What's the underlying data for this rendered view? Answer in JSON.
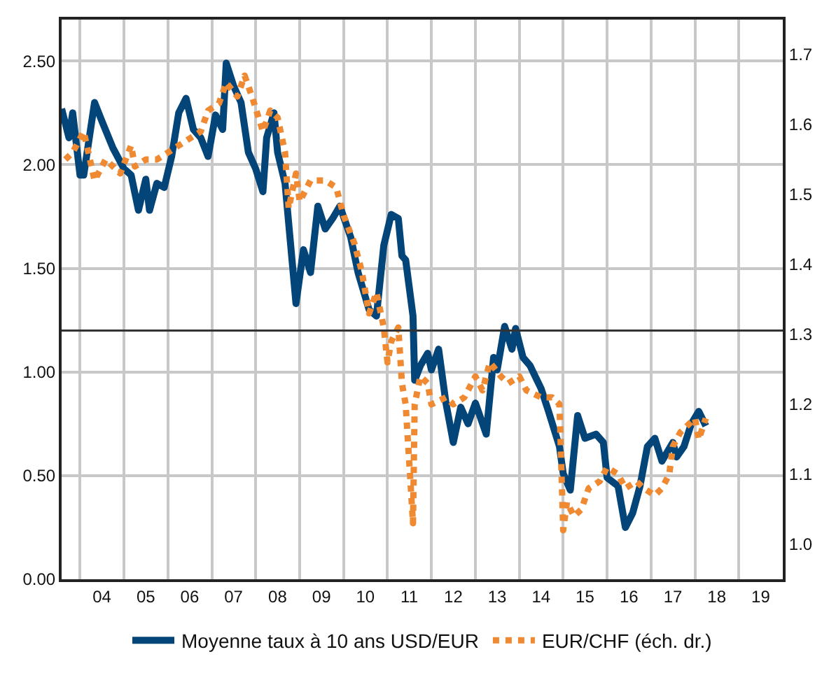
{
  "chart_data": {
    "type": "line",
    "x": [
      "2003-08",
      "2003-10",
      "2003-11",
      "2004-01",
      "2004-02",
      "2004-05",
      "2004-07",
      "2004-10",
      "2005-01",
      "2005-03",
      "2005-05",
      "2005-07",
      "2005-08",
      "2005-10",
      "2005-12",
      "2006-02",
      "2006-04",
      "2006-06",
      "2006-08",
      "2006-10",
      "2006-12",
      "2007-02",
      "2007-04",
      "2007-05",
      "2007-07",
      "2007-09",
      "2007-11",
      "2008-01",
      "2008-03",
      "2008-04",
      "2008-06",
      "2008-07",
      "2008-09",
      "2008-12",
      "2009-02",
      "2009-04",
      "2009-06",
      "2009-08",
      "2009-10",
      "2009-12",
      "2010-03",
      "2010-05",
      "2010-08",
      "2010-10",
      "2010-12",
      "2011-02",
      "2011-04",
      "2011-05",
      "2011-06",
      "2011-08",
      "2011-08-15",
      "2011-10",
      "2011-12",
      "2012-01",
      "2012-03",
      "2012-05",
      "2012-07",
      "2012-09",
      "2012-11",
      "2013-01",
      "2013-04",
      "2013-06",
      "2013-07",
      "2013-09",
      "2013-11",
      "2013-12",
      "2014-02",
      "2014-04",
      "2014-07",
      "2014-09",
      "2014-12",
      "2015-01",
      "2015-03",
      "2015-05",
      "2015-07",
      "2015-10",
      "2015-12",
      "2016-01",
      "2016-04",
      "2016-06",
      "2016-08",
      "2016-10",
      "2016-12",
      "2017-02",
      "2017-04",
      "2017-07",
      "2017-08",
      "2017-10",
      "2017-12",
      "2018-02",
      "2018-04"
    ],
    "series": [
      {
        "name": "Moyenne taux à 10 ans USD/EUR",
        "color": "#034579",
        "line_style": "solid",
        "values": [
          2.27,
          2.13,
          2.25,
          1.95,
          1.95,
          2.3,
          2.21,
          2.08,
          1.98,
          1.95,
          1.78,
          1.93,
          1.78,
          1.91,
          1.89,
          2.04,
          2.25,
          2.32,
          2.17,
          2.13,
          2.04,
          2.24,
          2.17,
          2.49,
          2.38,
          2.3,
          2.06,
          1.98,
          1.87,
          2.13,
          2.25,
          2.06,
          1.91,
          1.33,
          1.59,
          1.48,
          1.8,
          1.69,
          1.74,
          1.8,
          1.65,
          1.48,
          1.3,
          1.27,
          1.61,
          1.76,
          1.74,
          1.56,
          1.54,
          1.27,
          0.96,
          1.03,
          1.09,
          1.01,
          1.11,
          0.85,
          0.66,
          0.83,
          0.75,
          0.85,
          0.7,
          1.07,
          1.01,
          1.22,
          1.11,
          1.21,
          1.07,
          1.03,
          0.92,
          0.81,
          0.64,
          0.51,
          0.43,
          0.79,
          0.68,
          0.7,
          0.66,
          0.49,
          0.45,
          0.25,
          0.32,
          0.45,
          0.64,
          0.68,
          0.57,
          0.66,
          0.59,
          0.64,
          0.75,
          0.81,
          0.74
        ]
      },
      {
        "name": "EUR/CHF (éch. dr.)",
        "color": "#f08a32",
        "line_style": "dotted",
        "axis": "y2",
        "x": [
          "2003-09",
          "2003-11",
          "2004-02",
          "2004-05",
          "2004-08",
          "2004-12",
          "2005-03",
          "2005-04",
          "2005-07",
          "2005-10",
          "2006-01",
          "2006-04",
          "2006-07",
          "2006-10",
          "2006-12",
          "2007-03",
          "2007-05",
          "2007-08",
          "2007-10",
          "2007-12",
          "2008-03",
          "2008-05",
          "2008-07",
          "2008-09",
          "2008-10",
          "2008-12",
          "2009-01",
          "2009-04",
          "2009-06",
          "2009-08",
          "2009-11",
          "2010-01",
          "2010-04",
          "2010-06",
          "2010-08",
          "2010-10",
          "2010-12",
          "2011-01",
          "2011-02",
          "2011-04",
          "2011-05",
          "2011-06",
          "2011-08",
          "2011-08-15",
          "2011-10",
          "2011-12",
          "2012-01",
          "2012-05",
          "2012-07",
          "2012-10",
          "2013-01",
          "2013-03",
          "2013-05",
          "2013-08",
          "2013-10",
          "2014-01",
          "2014-03",
          "2014-07",
          "2014-10",
          "2014-12",
          "2015-01",
          "2015-02",
          "2015-04",
          "2015-06",
          "2015-08",
          "2015-11",
          "2016-01",
          "2016-04",
          "2016-06",
          "2016-09",
          "2016-11",
          "2017-02",
          "2017-04",
          "2017-06",
          "2017-07",
          "2017-09",
          "2017-11",
          "2018-01",
          "2018-02",
          "2018-04"
        ],
        "values": [
          1.55,
          1.56,
          1.59,
          1.52,
          1.55,
          1.53,
          1.57,
          1.54,
          1.55,
          1.55,
          1.56,
          1.57,
          1.58,
          1.59,
          1.62,
          1.63,
          1.66,
          1.64,
          1.67,
          1.64,
          1.59,
          1.62,
          1.61,
          1.56,
          1.48,
          1.53,
          1.49,
          1.52,
          1.52,
          1.52,
          1.51,
          1.47,
          1.43,
          1.39,
          1.33,
          1.36,
          1.31,
          1.26,
          1.29,
          1.31,
          1.23,
          1.2,
          1.03,
          1.2,
          1.24,
          1.23,
          1.2,
          1.21,
          1.2,
          1.21,
          1.24,
          1.22,
          1.26,
          1.24,
          1.23,
          1.24,
          1.22,
          1.21,
          1.21,
          1.2,
          1.02,
          1.06,
          1.04,
          1.05,
          1.08,
          1.09,
          1.11,
          1.1,
          1.08,
          1.09,
          1.08,
          1.07,
          1.08,
          1.1,
          1.14,
          1.16,
          1.17,
          1.18,
          1.15,
          1.18
        ]
      }
    ],
    "xlim": [
      "2003-08-01",
      "2020-01-01"
    ],
    "xticks": [
      {
        "value": "2004-01-01",
        "label": null
      },
      {
        "value": "2004-07-01",
        "label": "04"
      },
      {
        "value": "2005-01-01",
        "label": null
      },
      {
        "value": "2005-07-01",
        "label": "05"
      },
      {
        "value": "2006-01-01",
        "label": null
      },
      {
        "value": "2006-07-01",
        "label": "06"
      },
      {
        "value": "2007-01-01",
        "label": null
      },
      {
        "value": "2007-07-01",
        "label": "07"
      },
      {
        "value": "2008-01-01",
        "label": null
      },
      {
        "value": "2008-07-01",
        "label": "08"
      },
      {
        "value": "2009-01-01",
        "label": null
      },
      {
        "value": "2009-07-01",
        "label": "09"
      },
      {
        "value": "2010-01-01",
        "label": null
      },
      {
        "value": "2010-07-01",
        "label": "10"
      },
      {
        "value": "2011-01-01",
        "label": null
      },
      {
        "value": "2011-07-01",
        "label": "11"
      },
      {
        "value": "2012-01-01",
        "label": null
      },
      {
        "value": "2012-07-01",
        "label": "12"
      },
      {
        "value": "2013-01-01",
        "label": null
      },
      {
        "value": "2013-07-01",
        "label": "13"
      },
      {
        "value": "2014-01-01",
        "label": null
      },
      {
        "value": "2014-07-01",
        "label": "14"
      },
      {
        "value": "2015-01-01",
        "label": null
      },
      {
        "value": "2015-07-01",
        "label": "15"
      },
      {
        "value": "2016-01-01",
        "label": null
      },
      {
        "value": "2016-07-01",
        "label": "16"
      },
      {
        "value": "2017-01-01",
        "label": null
      },
      {
        "value": "2017-07-01",
        "label": "17"
      },
      {
        "value": "2018-01-01",
        "label": null
      },
      {
        "value": "2018-07-01",
        "label": "18"
      },
      {
        "value": "2019-01-01",
        "label": null
      },
      {
        "value": "2019-07-01",
        "label": "19"
      }
    ],
    "ylim": [
      0,
      2.7
    ],
    "yticks": [
      {
        "value": 0,
        "label": "0.00"
      },
      {
        "value": 0.5,
        "label": "0.50"
      },
      {
        "value": 1,
        "label": "1.00"
      },
      {
        "value": 1.5,
        "label": "1.50"
      },
      {
        "value": 2,
        "label": "2.00"
      },
      {
        "value": 2.5,
        "label": "2.50"
      }
    ],
    "y2lim": [
      0.95,
      1.75
    ],
    "y2ticks": [
      {
        "value": 1.0,
        "label": "1.0"
      },
      {
        "value": 1.1,
        "label": "1.1"
      },
      {
        "value": 1.2,
        "label": "1.2"
      },
      {
        "value": 1.3,
        "label": "1.3"
      },
      {
        "value": 1.4,
        "label": "1.4"
      },
      {
        "value": 1.5,
        "label": "1.5"
      },
      {
        "value": 1.6,
        "label": "1.6"
      },
      {
        "value": 1.7,
        "label": "1.7"
      }
    ],
    "ref_lines": [
      {
        "axis": "y",
        "value": 1.2,
        "color": "#333333"
      }
    ],
    "grid": true,
    "legend": "bottom"
  }
}
